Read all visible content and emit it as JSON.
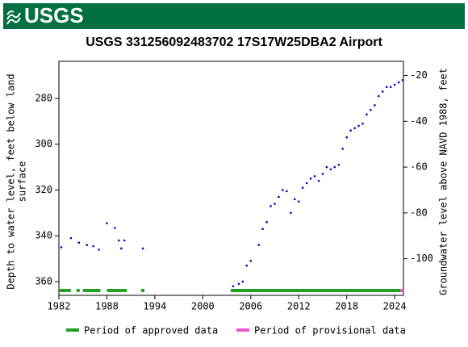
{
  "header": {
    "logo": "USGS"
  },
  "chart_data": {
    "type": "scatter",
    "title": "USGS 331256092483702 17S17W25DBA2 Airport",
    "y_label": [
      "Depth to water level, feet below land",
      "surface"
    ],
    "y2_label": "Groundwater level above NAVD 1988, feet",
    "xlim": [
      1982,
      2025.1
    ],
    "xticks": [
      1982,
      1988,
      1994,
      2000,
      2006,
      2012,
      2018,
      2024
    ],
    "ylim": [
      263.8,
      366
    ],
    "yticks": [
      280,
      300,
      320,
      340,
      360
    ],
    "y2lim": [
      -13.8,
      -116
    ],
    "y2ticks": [
      -20,
      -40,
      -60,
      -80,
      -100
    ],
    "series": [
      {
        "color": "#0000cc",
        "x": [
          1982.3,
          1983.5,
          1984.5,
          1985.5,
          1986.3,
          1987,
          1988,
          1989,
          1989.5,
          1989.8,
          1990.2,
          1992.5,
          2003.8,
          2004.5,
          2005,
          2005.5,
          2006,
          2007,
          2007.5,
          2008,
          2008.5,
          2009,
          2009.5,
          2010,
          2010.5,
          2011,
          2011.5,
          2012,
          2012.5,
          2013,
          2013.5,
          2014,
          2014.5,
          2015,
          2015.5,
          2016,
          2016.5,
          2017,
          2017.5,
          2018,
          2018.5,
          2019,
          2019.5,
          2020,
          2020.5,
          2021,
          2021.5,
          2022,
          2022.5,
          2023,
          2023.5,
          2024,
          2024.5,
          2025
        ],
        "values": [
          345,
          341,
          343,
          344,
          344.5,
          346,
          334.5,
          336.5,
          342,
          345.5,
          342,
          345.5,
          362,
          361,
          360,
          353,
          351,
          344,
          337,
          334,
          327,
          326,
          323,
          320,
          320.5,
          330,
          324,
          325,
          319,
          317,
          315,
          314,
          316,
          313,
          310,
          311,
          310,
          309,
          302,
          297,
          294,
          293,
          292,
          291,
          287,
          285,
          283,
          279,
          277,
          275,
          275,
          274,
          273,
          272
        ]
      }
    ],
    "periods": [
      {
        "name": "Period of approved data",
        "color": "#22a022",
        "ranges": [
          [
            1982,
            1983.5
          ],
          [
            1984.2,
            1984.6
          ],
          [
            1985,
            1987.2
          ],
          [
            1988,
            1990.5
          ],
          [
            1992.3,
            1992.7
          ],
          [
            2003.5,
            2024.7
          ]
        ]
      },
      {
        "name": "Period of provisional data",
        "color": "#ee55cc",
        "ranges": [
          [
            2024.7,
            2025.1
          ]
        ]
      }
    ]
  }
}
